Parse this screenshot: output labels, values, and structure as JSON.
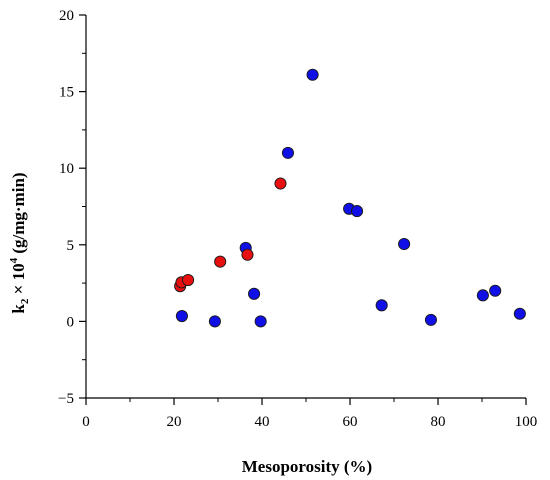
{
  "chart_data": {
    "type": "scatter",
    "xlabel": "Mesoporosity (%)",
    "ylabel": {
      "k": "k",
      "sub": "2",
      "mid": " × 10",
      "sup": "4",
      "units": " (g/mg·min)"
    },
    "xlim": [
      0,
      100
    ],
    "ylim": [
      -5,
      20
    ],
    "xticks": [
      0,
      20,
      40,
      60,
      80,
      100
    ],
    "yticks": [
      -5,
      0,
      5,
      10,
      15,
      20
    ],
    "x_minor_step": 10,
    "y_minor_step": 2.5,
    "ytick_labels": [
      "−5",
      "0",
      "5",
      "10",
      "15",
      "20"
    ],
    "grid": false,
    "series": [
      {
        "color": "#1010e6",
        "points": [
          [
            21.8,
            0.35
          ],
          [
            29.3,
            0.0
          ],
          [
            36.3,
            4.8
          ],
          [
            38.2,
            1.8
          ],
          [
            39.7,
            0.0
          ],
          [
            45.9,
            11.0
          ],
          [
            51.5,
            16.1
          ],
          [
            59.8,
            7.35
          ],
          [
            61.6,
            7.2
          ],
          [
            67.2,
            1.05
          ],
          [
            72.3,
            5.05
          ],
          [
            78.4,
            0.1
          ],
          [
            90.2,
            1.7
          ],
          [
            93.0,
            2.0
          ],
          [
            98.6,
            0.5
          ]
        ]
      },
      {
        "color": "#e61010",
        "points": [
          [
            21.4,
            2.3
          ],
          [
            21.7,
            2.55
          ],
          [
            23.2,
            2.7
          ],
          [
            30.5,
            3.9
          ],
          [
            36.7,
            4.35
          ],
          [
            44.2,
            9.0
          ]
        ]
      }
    ]
  }
}
